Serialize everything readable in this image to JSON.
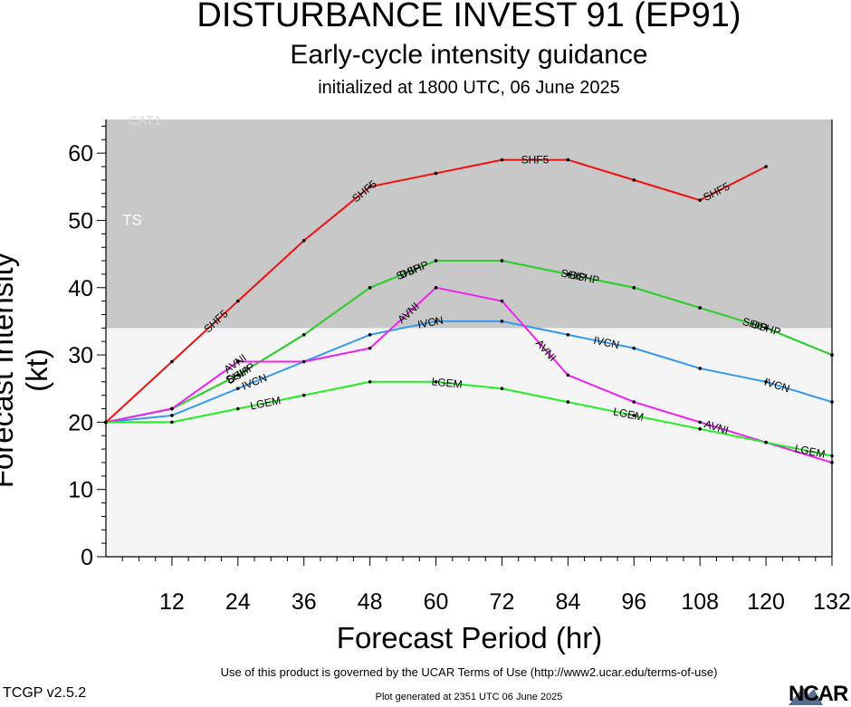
{
  "header": {
    "title": "DISTURBANCE INVEST 91 (EP91)",
    "subtitle": "Early-cycle intensity guidance",
    "init": "initialized at 1800 UTC, 06 June 2025"
  },
  "footer": {
    "terms": "Use of this product is governed by the UCAR Terms of Use (http://www2.ucar.edu/terms-of-use)",
    "version": "TCGP v2.5.2",
    "generated": "Plot generated at 2351 UTC   06 June 2025",
    "logo": "NCAR"
  },
  "chart_data": {
    "type": "line",
    "xlabel": "Forecast Period (hr)",
    "ylabel": "Forecast Intensity (kt)",
    "xlim": [
      0,
      132
    ],
    "ylim": [
      0,
      65
    ],
    "xticks": [
      12,
      24,
      36,
      48,
      60,
      72,
      84,
      96,
      108,
      120,
      132
    ],
    "yticks": [
      0,
      10,
      20,
      30,
      40,
      50,
      60
    ],
    "bands": [
      {
        "label": "TS",
        "from": 34,
        "to": 64,
        "color": "#c8c8c8"
      },
      {
        "label": "CAT1",
        "from": 64,
        "to": 65,
        "color": "#c8c8c8"
      }
    ],
    "below_band_color": "#f5f5f5",
    "series": [
      {
        "name": "SHF5",
        "color": "#ee1111",
        "x": [
          0,
          12,
          24,
          36,
          48,
          60,
          72,
          84,
          96,
          108,
          120
        ],
        "y": [
          20,
          29,
          38,
          47,
          55,
          57,
          59,
          59,
          56,
          53,
          58
        ],
        "label_x": [
          20,
          47,
          78,
          111
        ]
      },
      {
        "name": "DSHP",
        "color": "#33cc33",
        "x": [
          0,
          12,
          24,
          36,
          48,
          60,
          72,
          84,
          96,
          108,
          120,
          132
        ],
        "y": [
          20,
          22,
          27,
          33,
          40,
          44,
          44,
          42,
          40,
          37,
          34,
          30
        ],
        "label_x": [
          24.5,
          56,
          87,
          120
        ]
      },
      {
        "name": "SHIP",
        "color": "#33cc33",
        "x": [
          0,
          12,
          24,
          36,
          48,
          60,
          72,
          84,
          96,
          108,
          120,
          132
        ],
        "y": [
          20,
          22,
          27,
          33,
          40,
          44,
          44,
          42,
          40,
          37,
          34,
          30
        ],
        "label_x": [
          24,
          55,
          85,
          118
        ]
      },
      {
        "name": "IVCN",
        "color": "#3399ee",
        "x": [
          0,
          12,
          24,
          36,
          48,
          60,
          72,
          84,
          96,
          108,
          120,
          132
        ],
        "y": [
          20,
          21,
          25,
          29,
          33,
          35,
          35,
          33,
          31,
          28,
          26,
          23
        ],
        "label_x": [
          27,
          59,
          91,
          122
        ]
      },
      {
        "name": "AVNI",
        "color": "#ee22ee",
        "x": [
          0,
          12,
          24,
          36,
          48,
          60,
          72,
          84,
          96,
          108,
          120,
          132
        ],
        "y": [
          20,
          22,
          29,
          29,
          31,
          40,
          38,
          27,
          23,
          20,
          17,
          14
        ],
        "label_x": [
          23.5,
          55,
          80,
          111
        ]
      },
      {
        "name": "LGEM",
        "color": "#22ee22",
        "x": [
          0,
          12,
          24,
          36,
          48,
          60,
          72,
          84,
          96,
          108,
          120,
          132
        ],
        "y": [
          20,
          20,
          22,
          24,
          26,
          26,
          25,
          23,
          21,
          19,
          17,
          15
        ],
        "label_x": [
          29,
          62,
          95,
          128
        ]
      }
    ]
  }
}
